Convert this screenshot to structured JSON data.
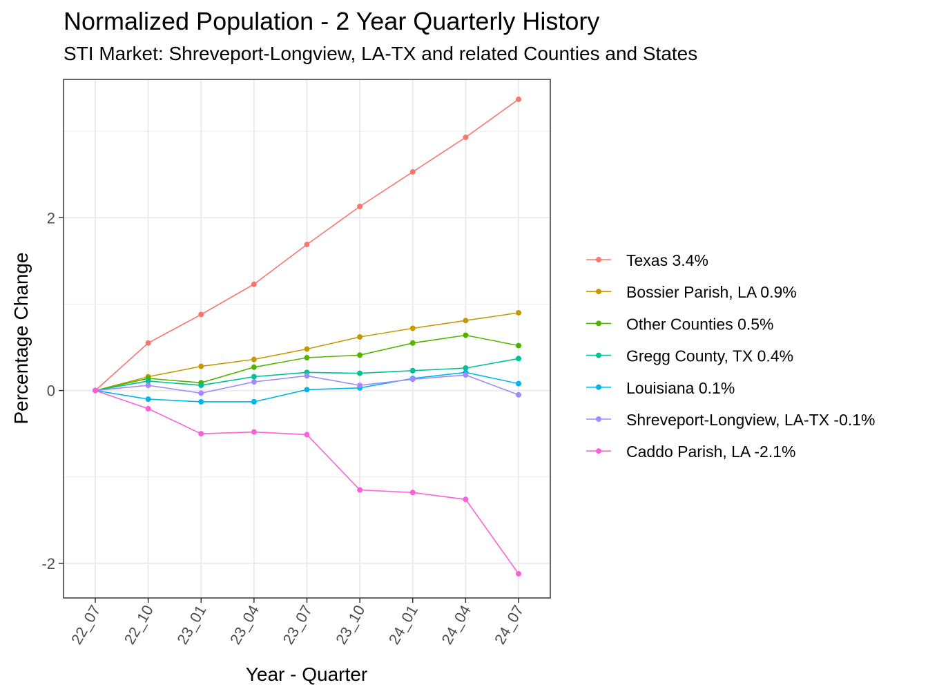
{
  "chart_data": {
    "type": "line",
    "title": "Normalized Population - 2 Year Quarterly History",
    "subtitle": "STI Market: Shreveport-Longview, LA-TX and related Counties and States",
    "xlabel": "Year - Quarter",
    "ylabel": "Percentage Change",
    "categories": [
      "22_07",
      "22_10",
      "23_01",
      "23_04",
      "23_07",
      "23_10",
      "24_01",
      "24_04",
      "24_07"
    ],
    "ylim": [
      -2.4,
      3.6
    ],
    "yticks": [
      -2,
      0,
      2
    ],
    "grid": true,
    "legend_position": "right",
    "series": [
      {
        "name": "Texas 3.4%",
        "color": "#F8766D",
        "values": [
          0,
          0.55,
          0.88,
          1.23,
          1.69,
          2.13,
          2.53,
          2.93,
          3.37
        ]
      },
      {
        "name": "Bossier Parish, LA 0.9%",
        "color": "#C49A00",
        "values": [
          0,
          0.16,
          0.28,
          0.36,
          0.48,
          0.62,
          0.72,
          0.81,
          0.9
        ]
      },
      {
        "name": "Other Counties 0.5%",
        "color": "#53B400",
        "values": [
          0,
          0.14,
          0.09,
          0.27,
          0.38,
          0.41,
          0.55,
          0.64,
          0.52
        ]
      },
      {
        "name": "Gregg County, TX 0.4%",
        "color": "#00C094",
        "values": [
          0,
          0.11,
          0.06,
          0.16,
          0.21,
          0.2,
          0.23,
          0.26,
          0.37
        ]
      },
      {
        "name": "Louisiana 0.1%",
        "color": "#00B6EB",
        "values": [
          0,
          -0.1,
          -0.13,
          -0.13,
          0.01,
          0.03,
          0.14,
          0.21,
          0.08
        ]
      },
      {
        "name": "Shreveport-Longview, LA-TX -0.1%",
        "color": "#A58AFF",
        "values": [
          0,
          0.06,
          -0.03,
          0.1,
          0.17,
          0.06,
          0.13,
          0.18,
          -0.05
        ]
      },
      {
        "name": "Caddo Parish, LA -2.1%",
        "color": "#FB61D7",
        "values": [
          0,
          -0.21,
          -0.5,
          -0.48,
          -0.51,
          -1.15,
          -1.18,
          -1.26,
          -2.12
        ]
      }
    ]
  }
}
